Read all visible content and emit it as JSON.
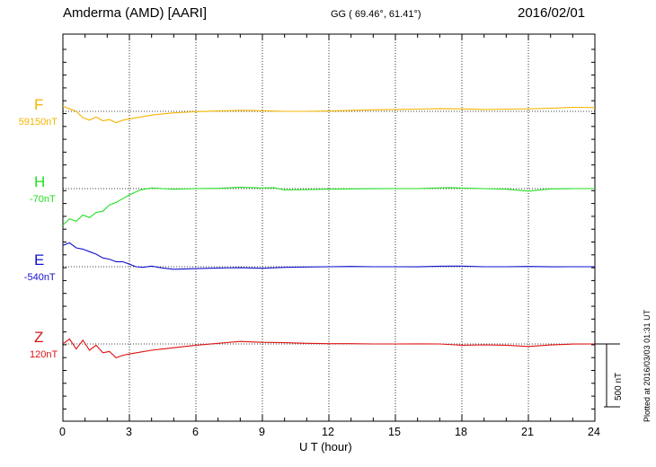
{
  "header": {
    "station": "Amderma (AMD)  [AARI]",
    "coords": "GG ( 69.46°,  61.41°)",
    "date": "2016/02/01"
  },
  "footnote": "Plotted at 2016/03/03 01:31  UT",
  "scale_label": "500 nT",
  "colors": {
    "F": "#f5b400",
    "H": "#22e022",
    "E": "#1111cc",
    "Z": "#dd1111"
  },
  "chart_data": {
    "type": "line",
    "title": "Amderma (AMD)  [AARI]",
    "xlabel": "U T (hour)",
    "ylabel": "",
    "xlim": [
      0,
      24
    ],
    "xticks": [
      0,
      3,
      6,
      9,
      12,
      15,
      18,
      21,
      24
    ],
    "scale_bar_nT": 500,
    "grid": true,
    "series": [
      {
        "name": "F",
        "baseline_label": "59150nT",
        "x": [
          0,
          0.3,
          0.6,
          0.9,
          1.2,
          1.5,
          1.8,
          2.1,
          2.4,
          2.7,
          3,
          3.5,
          4,
          4.5,
          5,
          5.5,
          6,
          7,
          8,
          9,
          10,
          11,
          12,
          13,
          14,
          15,
          16,
          17,
          18,
          19,
          20,
          21,
          22,
          23,
          24
        ],
        "y": [
          59190,
          59170,
          59150,
          59100,
          59080,
          59105,
          59075,
          59085,
          59060,
          59080,
          59090,
          59105,
          59120,
          59130,
          59138,
          59143,
          59148,
          59153,
          59158,
          59155,
          59150,
          59150,
          59153,
          59158,
          59162,
          59165,
          59168,
          59172,
          59170,
          59165,
          59168,
          59170,
          59175,
          59182,
          59180
        ]
      },
      {
        "name": "H",
        "baseline_label": "-70nT",
        "x": [
          0,
          0.3,
          0.6,
          0.9,
          1.2,
          1.5,
          1.8,
          2.1,
          2.4,
          2.7,
          3,
          3.5,
          4,
          4.5,
          5,
          6,
          7,
          8,
          9,
          9.5,
          10,
          11,
          12,
          13,
          14,
          15,
          16,
          17,
          17.5,
          18,
          19,
          20,
          21,
          22,
          23,
          24
        ],
        "y": [
          -360,
          -310,
          -330,
          -280,
          -300,
          -260,
          -250,
          -200,
          -180,
          -150,
          -120,
          -80,
          -65,
          -70,
          -75,
          -70,
          -68,
          -60,
          -65,
          -62,
          -80,
          -78,
          -74,
          -72,
          -71,
          -70,
          -70,
          -64,
          -62,
          -66,
          -70,
          -75,
          -90,
          -72,
          -70,
          -70
        ]
      },
      {
        "name": "E",
        "baseline_label": "-540nT",
        "x": [
          0,
          0.3,
          0.6,
          0.9,
          1.2,
          1.5,
          1.8,
          2.1,
          2.4,
          2.7,
          3,
          3.3,
          3.6,
          4,
          4.5,
          5,
          6,
          7,
          8,
          9,
          10,
          11,
          12,
          13,
          14,
          15,
          16,
          17,
          18,
          19,
          20,
          21,
          22,
          23,
          24
        ],
        "y": [
          -370,
          -350,
          -390,
          -400,
          -420,
          -440,
          -470,
          -480,
          -500,
          -500,
          -520,
          -540,
          -545,
          -535,
          -550,
          -560,
          -555,
          -550,
          -548,
          -552,
          -545,
          -542,
          -540,
          -538,
          -540,
          -540,
          -541,
          -536,
          -535,
          -540,
          -540,
          -538,
          -541,
          -540,
          -540
        ]
      },
      {
        "name": "Z",
        "baseline_label": "120nT",
        "x": [
          0,
          0.3,
          0.6,
          0.9,
          1.2,
          1.5,
          1.8,
          2.1,
          2.4,
          2.7,
          3,
          3.5,
          4,
          4.5,
          5,
          5.5,
          6,
          7,
          8,
          9,
          10,
          11,
          12,
          13,
          14,
          15,
          16,
          17,
          18,
          19,
          20,
          21,
          22,
          23,
          24
        ],
        "y": [
          120,
          160,
          80,
          150,
          70,
          110,
          50,
          60,
          10,
          30,
          40,
          55,
          70,
          80,
          90,
          100,
          110,
          125,
          140,
          133,
          130,
          125,
          122,
          122,
          120,
          120,
          121,
          120,
          110,
          113,
          110,
          100,
          112,
          119,
          120
        ]
      }
    ]
  }
}
